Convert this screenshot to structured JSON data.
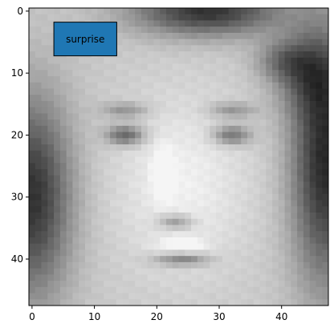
{
  "chart_data": {
    "type": "heatmap",
    "colormap": "gray",
    "grid": false,
    "image": {
      "rows": 48,
      "cols": 48,
      "description_of_pixels": "grayscale face photo, not reproducible as exact pixels"
    },
    "xlim": [
      -0.5,
      47.5
    ],
    "ylim": [
      47.5,
      -0.5
    ],
    "x_ticks": [
      0,
      10,
      20,
      30,
      40
    ],
    "y_ticks": [
      0,
      10,
      20,
      30,
      40
    ],
    "x_tick_labels": [
      "0",
      "10",
      "20",
      "30",
      "40"
    ],
    "y_tick_labels": [
      "0",
      "10",
      "20",
      "30",
      "40"
    ],
    "annotation": {
      "text": "surprise",
      "x": 3.5,
      "y": 4.5,
      "face_color": "#1f77b4",
      "edge_color": "#000000"
    }
  }
}
